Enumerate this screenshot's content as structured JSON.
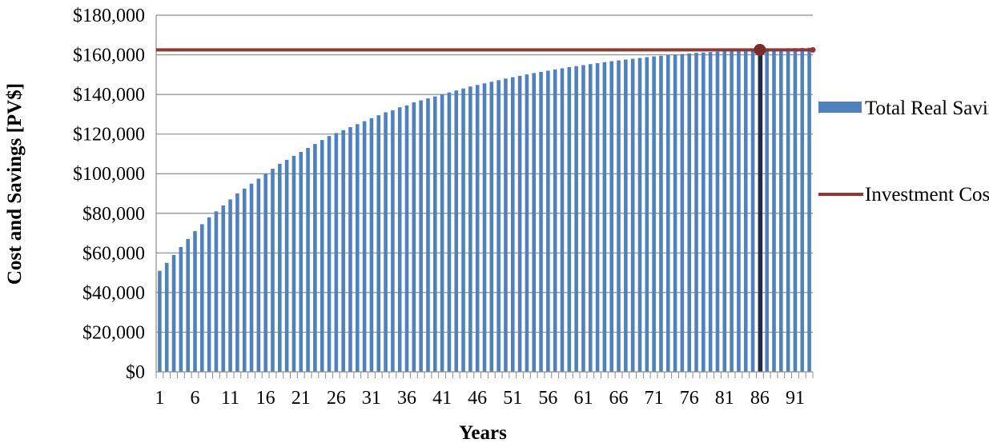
{
  "chart_data": {
    "type": "bar",
    "xlabel": "Years",
    "ylabel": "Cost and Savings [PV$]",
    "ylim": [
      0,
      180000
    ],
    "y_ticks": [
      "$0",
      "$20,000",
      "$40,000",
      "$60,000",
      "$80,000",
      "$100,000",
      "$120,000",
      "$140,000",
      "$160,000",
      "$180,000"
    ],
    "x_tick_labels": [
      "1",
      "6",
      "11",
      "16",
      "21",
      "26",
      "31",
      "36",
      "41",
      "46",
      "51",
      "56",
      "61",
      "66",
      "71",
      "76",
      "81",
      "86",
      "91"
    ],
    "grid": true,
    "legend_position": "right",
    "series": [
      {
        "name": "Total Real Savings",
        "type": "bar",
        "color": "#4F81BD",
        "x": [
          1,
          2,
          3,
          4,
          5,
          6,
          7,
          8,
          9,
          10,
          11,
          12,
          13,
          14,
          15,
          16,
          17,
          18,
          19,
          20,
          21,
          22,
          23,
          24,
          25,
          26,
          27,
          28,
          29,
          30,
          31,
          32,
          33,
          34,
          35,
          36,
          37,
          38,
          39,
          40,
          41,
          42,
          43,
          44,
          45,
          46,
          47,
          48,
          49,
          50,
          51,
          52,
          53,
          54,
          55,
          56,
          57,
          58,
          59,
          60,
          61,
          62,
          63,
          64,
          65,
          66,
          67,
          68,
          69,
          70,
          71,
          72,
          73,
          74,
          75,
          76,
          77,
          78,
          79,
          80,
          81,
          82,
          83,
          84,
          85,
          86,
          87,
          88,
          89,
          90,
          91,
          92,
          93
        ],
        "values": [
          51000,
          55000,
          59000,
          63000,
          67000,
          71000,
          74500,
          78000,
          81000,
          84000,
          87000,
          90000,
          92500,
          95000,
          97500,
          100000,
          102500,
          105000,
          107000,
          109000,
          111000,
          113000,
          115000,
          117000,
          119000,
          120500,
          122000,
          123500,
          125000,
          126500,
          128000,
          129500,
          131000,
          132000,
          133500,
          134500,
          136000,
          137000,
          138000,
          139000,
          140000,
          141000,
          142000,
          143000,
          144000,
          144800,
          145600,
          146400,
          147200,
          148000,
          148700,
          149400,
          150100,
          150800,
          151400,
          152000,
          152600,
          153200,
          153800,
          154300,
          154800,
          155300,
          155800,
          156300,
          156800,
          157200,
          157600,
          158000,
          158400,
          158800,
          159200,
          159500,
          159800,
          160100,
          160400,
          160700,
          161000,
          161200,
          161400,
          161600,
          161800,
          162000,
          162200,
          162400,
          162600,
          162800,
          163000,
          163100,
          163200,
          163300,
          163400,
          163500,
          163600
        ],
        "highlight_index": 85,
        "highlight_color": "#1F2A44"
      },
      {
        "name": "Investment Costs",
        "type": "line",
        "color": "#943634",
        "value": 162500
      }
    ],
    "marker": {
      "x": 86,
      "y": 162500,
      "color": "#7B2C2C"
    }
  }
}
